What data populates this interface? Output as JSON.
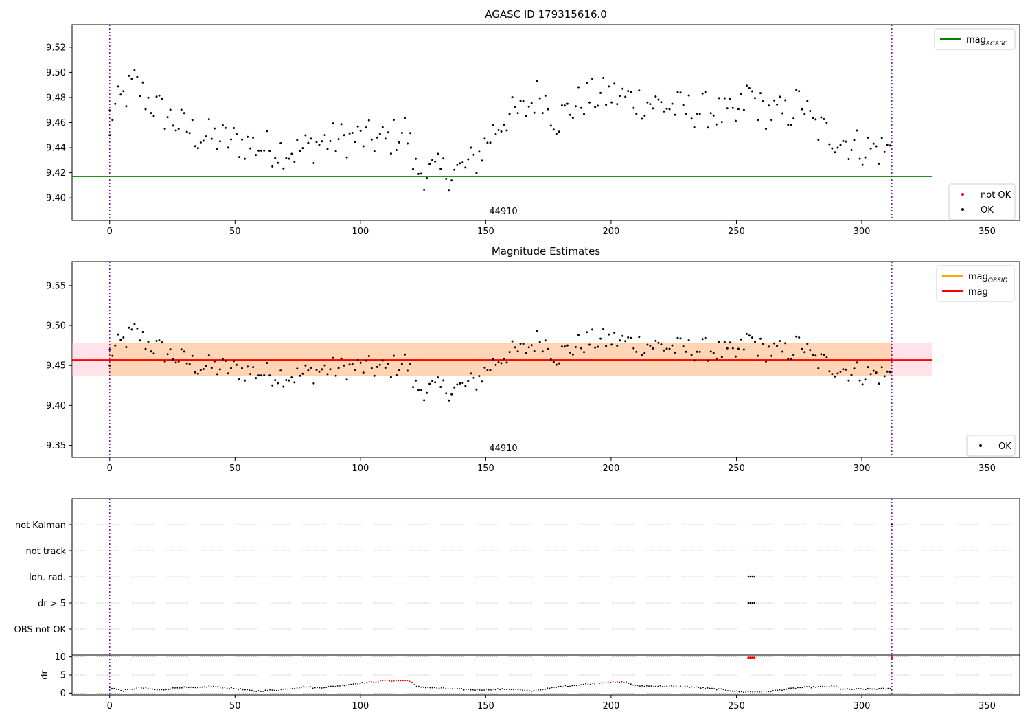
{
  "chart_data": [
    {
      "type": "scatter",
      "title": "AGASC ID 179315616.0",
      "obsid_label": "44910",
      "xlim": [
        -15,
        363
      ],
      "ylim": [
        9.382,
        9.538
      ],
      "x_ticks": [
        0,
        50,
        100,
        150,
        200,
        250,
        300,
        350
      ],
      "y_ticks": [
        9.4,
        9.42,
        9.44,
        9.46,
        9.48,
        9.5,
        9.52
      ],
      "grid": false,
      "vlines": [
        0,
        312
      ],
      "lines": [
        {
          "name": "mag",
          "subscript": "AGASC",
          "y": 9.417,
          "x_range": [
            -15,
            328
          ],
          "color": "#008000"
        }
      ],
      "legends": {
        "upper-right": [
          {
            "label": "mag",
            "subscript": "AGASC",
            "kind": "line",
            "color": "#008000"
          }
        ],
        "lower-right": [
          {
            "label": "not OK",
            "kind": "dot",
            "color": "#ff0000"
          },
          {
            "label": "OK",
            "kind": "dot",
            "color": "#000000"
          }
        ]
      },
      "series": [
        {
          "name": "OK",
          "color": "#000000",
          "kind": "points"
        }
      ]
    },
    {
      "type": "scatter",
      "title": "Magnitude Estimates",
      "obsid_label": "44910",
      "xlim": [
        -15,
        363
      ],
      "ylim": [
        9.335,
        9.58
      ],
      "x_ticks": [
        0,
        50,
        100,
        150,
        200,
        250,
        300,
        350
      ],
      "y_ticks": [
        9.35,
        9.4,
        9.45,
        9.5,
        9.55
      ],
      "grid": false,
      "vlines": [
        0,
        312
      ],
      "lines": [
        {
          "name": "mag",
          "subscript": "OBSID",
          "y": 9.457,
          "x_range": [
            0,
            312
          ],
          "color": "#ffa500"
        },
        {
          "name": "mag",
          "y": 9.457,
          "x_range": [
            -15,
            328
          ],
          "color": "#ff0000"
        }
      ],
      "bands": [
        {
          "y_range": [
            9.437,
            9.478
          ],
          "x_range": [
            -15,
            328
          ],
          "color": "#ffc0cb"
        },
        {
          "y_range": [
            9.437,
            9.478
          ],
          "x_range": [
            0,
            312
          ],
          "color": "#ffa500"
        }
      ],
      "legends": {
        "upper-right": [
          {
            "label": "mag",
            "subscript": "OBSID",
            "kind": "line",
            "color": "#ffa500"
          },
          {
            "label": "mag",
            "kind": "line",
            "color": "#ff0000"
          }
        ],
        "lower-right": [
          {
            "label": "OK",
            "kind": "dot",
            "color": "#000000"
          }
        ]
      },
      "series": [
        {
          "name": "OK",
          "color": "#000000",
          "kind": "points"
        }
      ]
    },
    {
      "type": "scatter",
      "title": "",
      "categories": [
        "not Kalman",
        "not track",
        "Ion. rad.",
        "dr > 5",
        "OBS not OK"
      ],
      "grid": true,
      "vlines": [
        0,
        312
      ],
      "flags": [
        {
          "category": "not Kalman",
          "x": [
            312
          ]
        },
        {
          "category": "Ion. rad.",
          "x": [
            254.8,
            255.6,
            256.4,
            257.2
          ]
        },
        {
          "category": "dr > 5",
          "x": [
            254.8,
            255.6,
            256.4,
            257.2
          ]
        }
      ]
    },
    {
      "type": "scatter",
      "title": "",
      "ylabel": "dr",
      "xlim": [
        -15,
        363
      ],
      "ylim": [
        -0.5,
        10.5
      ],
      "x_ticks": [
        0,
        50,
        100,
        150,
        200,
        250,
        300,
        350
      ],
      "y_ticks": [
        0,
        5,
        10
      ],
      "grid": true,
      "vlines": [
        0,
        312
      ],
      "threshold": 3,
      "series": [
        {
          "name": "dr",
          "color": "#000000",
          "color_over_threshold": "#ff0000"
        }
      ],
      "spikes": [
        {
          "x": [
            254.8,
            255.6,
            256.4,
            257.2
          ],
          "y": 9.8
        },
        {
          "x": [
            312
          ],
          "y": 9.8
        }
      ]
    }
  ]
}
